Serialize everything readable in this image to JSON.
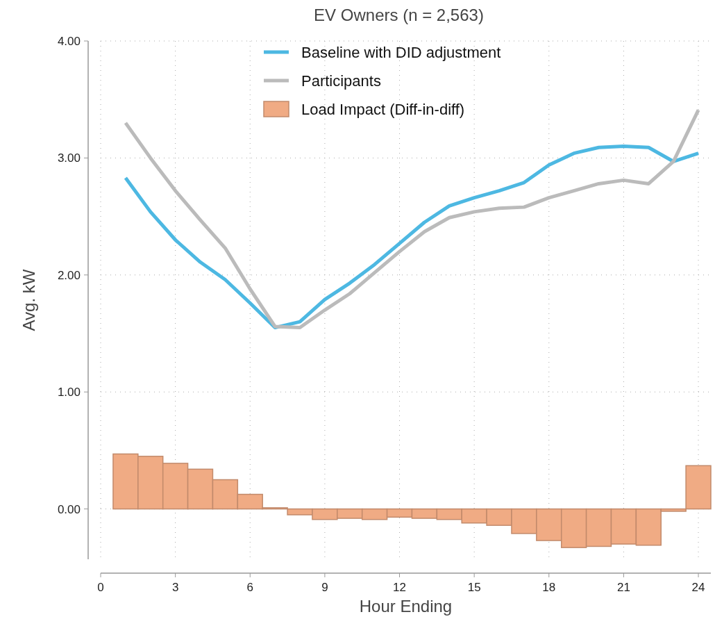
{
  "chart_data": {
    "type": "line",
    "title": "EV Owners (n = 2,563)",
    "xlabel": "Hour Ending",
    "ylabel": "Avg. kW",
    "x": [
      1,
      2,
      3,
      4,
      5,
      6,
      7,
      8,
      9,
      10,
      11,
      12,
      13,
      14,
      15,
      16,
      17,
      18,
      19,
      20,
      21,
      22,
      23,
      24
    ],
    "xlim": [
      0,
      24.5
    ],
    "xticks": [
      0,
      3,
      6,
      9,
      12,
      15,
      18,
      21,
      24
    ],
    "ylim": [
      -0.43,
      4
    ],
    "yticks": [
      {
        "value": 0,
        "label": "0.00"
      },
      {
        "value": 1,
        "label": "1.00"
      },
      {
        "value": 2,
        "label": "2.00"
      },
      {
        "value": 3,
        "label": "3.00"
      },
      {
        "value": 4,
        "label": "4.00"
      }
    ],
    "grid": true,
    "legend": "top",
    "series": [
      {
        "name": "Baseline with DID adjustment",
        "color": "#4db8e2",
        "values": [
          2.83,
          2.54,
          2.3,
          2.11,
          1.96,
          1.76,
          1.55,
          1.6,
          1.79,
          1.93,
          2.09,
          2.27,
          2.45,
          2.59,
          2.66,
          2.72,
          2.79,
          2.94,
          3.04,
          3.09,
          3.1,
          3.09,
          2.97,
          3.04
        ]
      },
      {
        "name": "Participants",
        "color": "#bbbbbb",
        "values": [
          3.3,
          3.0,
          2.72,
          2.47,
          2.23,
          1.88,
          1.56,
          1.55,
          1.7,
          1.84,
          2.02,
          2.2,
          2.37,
          2.49,
          2.54,
          2.57,
          2.58,
          2.66,
          2.72,
          2.78,
          2.81,
          2.78,
          2.97,
          3.41
        ]
      },
      {
        "name": "Load Impact (Diff-in-diff)",
        "type": "bar",
        "color": "#f0ab84",
        "values": [
          0.47,
          0.45,
          0.39,
          0.34,
          0.25,
          0.125,
          0.01,
          -0.05,
          -0.09,
          -0.08,
          -0.09,
          -0.07,
          -0.08,
          -0.09,
          -0.12,
          -0.14,
          -0.21,
          -0.27,
          -0.33,
          -0.32,
          -0.3,
          -0.31,
          -0.02,
          0.37
        ]
      }
    ]
  }
}
